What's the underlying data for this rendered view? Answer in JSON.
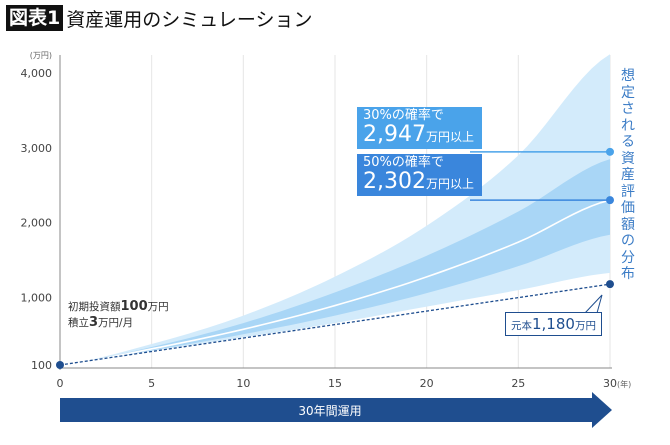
{
  "title": {
    "badge": "図表1",
    "text": "資産運用のシミュレーション"
  },
  "chart_data": {
    "type": "area",
    "x": [
      0,
      5,
      10,
      15,
      20,
      25,
      30
    ],
    "xlabel": "(年)",
    "ylabel": "(万円)",
    "xticks": [
      "0",
      "5",
      "10",
      "15",
      "20",
      "25",
      "30"
    ],
    "yticks": [
      {
        "v": 100,
        "label": "100"
      },
      {
        "v": 1000,
        "label": "1,000"
      },
      {
        "v": 2000,
        "label": "2,000"
      },
      {
        "v": 3000,
        "label": "3,000"
      },
      {
        "v": 4000,
        "label": "4,000"
      }
    ],
    "ylim": [
      100,
      4000
    ],
    "grid": "vertical",
    "bands": {
      "outer_upper": [
        100,
        380,
        760,
        1280,
        1960,
        2900,
        4250
      ],
      "inner_upper": [
        100,
        340,
        660,
        1070,
        1560,
        2150,
        2850
      ],
      "median": [
        100,
        316,
        577,
        894,
        1277,
        1741,
        2302
      ],
      "inner_lower": [
        100,
        295,
        510,
        760,
        1060,
        1420,
        1840
      ],
      "outer_lower": [
        100,
        285,
        470,
        660,
        880,
        1100,
        1330
      ]
    },
    "principal": [
      100,
      280,
      460,
      640,
      820,
      1000,
      1180
    ],
    "colors": {
      "outer": "#d3ebfb",
      "inner": "#a9d6f6",
      "median": "#ffffff",
      "principal": "#1f4e8f",
      "box30": "#4aa3ea",
      "box50": "#3a86dc",
      "arrow": "#1f4e8f"
    },
    "markers": {
      "p30": 2947,
      "p50": 2302
    }
  },
  "annotations": {
    "p30": {
      "prob": "30%の確率で",
      "value": "2,947",
      "unit": "万円以上"
    },
    "p50": {
      "prob": "50%の確率で",
      "value": "2,302",
      "unit": "万円以上"
    },
    "distribution": "想定される資産評価額の分布",
    "initial_line1_pre": "初期投資額",
    "initial_line1_val": "100",
    "initial_line1_unit": "万円",
    "initial_line2_pre": "積立",
    "initial_line2_val": "3",
    "initial_line2_unit": "万円/月",
    "principal_pre": "元本",
    "principal_val": "1,180",
    "principal_unit": "万円",
    "arrow": "30年間運用"
  }
}
